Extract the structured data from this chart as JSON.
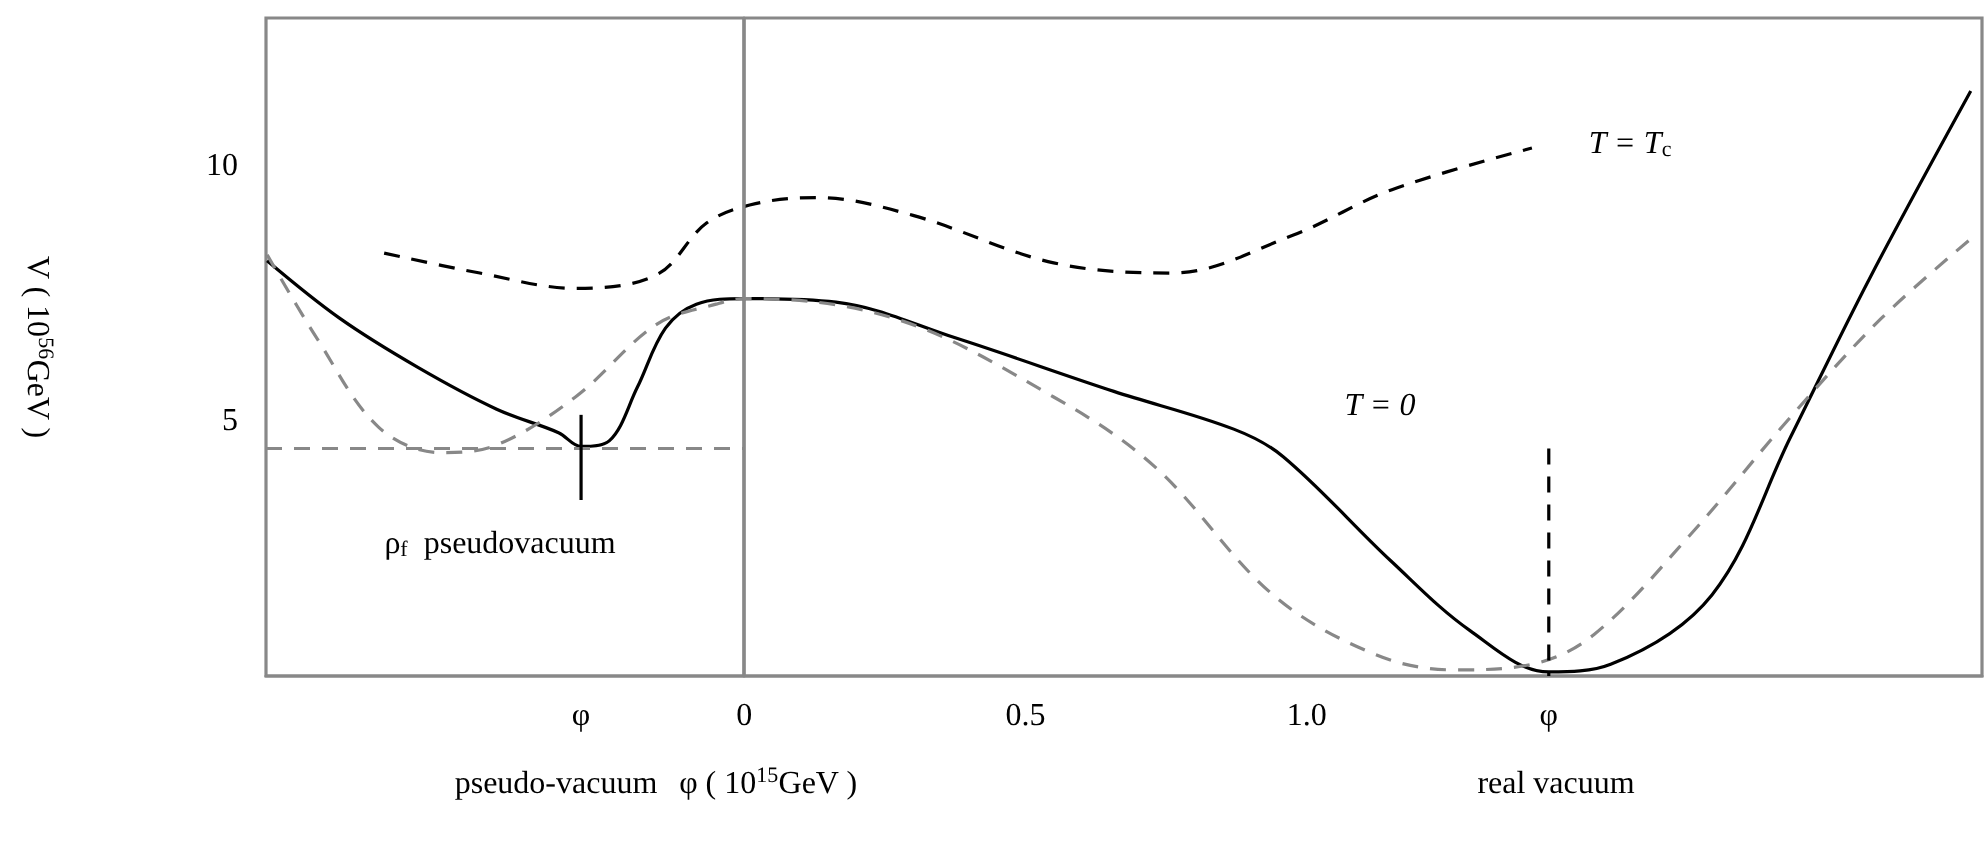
{
  "chart_data": {
    "type": "line",
    "xlabel": "φ ( 10$^{15}$GeV )",
    "ylabel": "V ( 10$^{56}$GeV )",
    "xlim": [
      -0.85,
      2.2
    ],
    "ylim": [
      0,
      12.9
    ],
    "xticks": [
      {
        "value": -0.29,
        "label": "φ"
      },
      0,
      0.5,
      {
        "value": 1,
        "label": "1.0"
      },
      {
        "value": 1.43,
        "label": "φ"
      }
    ],
    "yticks": [
      5,
      10
    ],
    "grid": false,
    "marker": "none",
    "series": [
      {
        "color": "#000000",
        "line_style": "solid",
        "x": [
          -0.848,
          -0.72,
          -0.58,
          -0.44,
          -0.33,
          -0.29,
          -0.24,
          -0.19,
          -0.14,
          -0.085,
          0,
          0.163,
          0.375,
          0.657,
          0.87,
          0.958,
          1.15,
          1.29,
          1.43,
          1.54,
          1.72,
          1.86,
          2.0,
          2.18
        ],
        "values": [
          8.14,
          7.02,
          6.05,
          5.23,
          4.77,
          4.5,
          4.61,
          5.66,
          6.82,
          7.29,
          7.4,
          7.33,
          6.63,
          5.58,
          4.84,
          4.3,
          2.25,
          0.89,
          0.08,
          0.23,
          1.59,
          4.69,
          7.79,
          11.47
        ]
      },
      {
        "color": "#000000",
        "line_style": "dashed",
        "x": [
          -0.64,
          -0.47,
          -0.3,
          -0.155,
          -0.067,
          0.02,
          0.13,
          0.3,
          0.55,
          0.76,
          0.975,
          1.15,
          1.4
        ],
        "values": [
          8.29,
          7.9,
          7.6,
          7.87,
          8.88,
          9.26,
          9.38,
          9.03,
          8.1,
          7.9,
          8.64,
          9.53,
          10.35
        ]
      },
      {
        "color": "#888888",
        "line_style": "dashed",
        "x": [
          -0.848,
          -0.76,
          -0.65,
          -0.54,
          -0.44,
          -0.3,
          -0.155,
          -0.05,
          0,
          0.27,
          0.55,
          0.73,
          0.94,
          1.12,
          1.26,
          1.4,
          1.51,
          1.68,
          1.86,
          2.02,
          2.18
        ],
        "values": [
          8.26,
          6.63,
          4.88,
          4.38,
          4.53,
          5.47,
          6.9,
          7.29,
          7.4,
          7.0,
          5.47,
          4.1,
          1.59,
          0.43,
          0.12,
          0.23,
          0.81,
          2.75,
          5.08,
          7.0,
          8.57
        ]
      },
      {
        "color": "#888888",
        "line_style": "dashed",
        "x": [
          -0.85,
          0
        ],
        "values": [
          4.46,
          4.46
        ]
      },
      {
        "color": "#000000",
        "line_style": "dashed",
        "x": [
          1.43,
          1.43
        ],
        "values": [
          4.46,
          0
        ]
      },
      {
        "color": "#000000",
        "line_style": "solid",
        "x": [
          -0.29,
          -0.29
        ],
        "values": [
          5.12,
          3.45
        ]
      }
    ],
    "ref_lines": [
      {
        "axis": "x",
        "value": 0,
        "color": "#888888",
        "line_style": "solid"
      }
    ],
    "annotations": [
      "T = T$_{c}$",
      "T = 0",
      "ρ$_{f}$  pseudovacuum",
      "pseudo-vacuum",
      "real vacuum"
    ]
  }
}
